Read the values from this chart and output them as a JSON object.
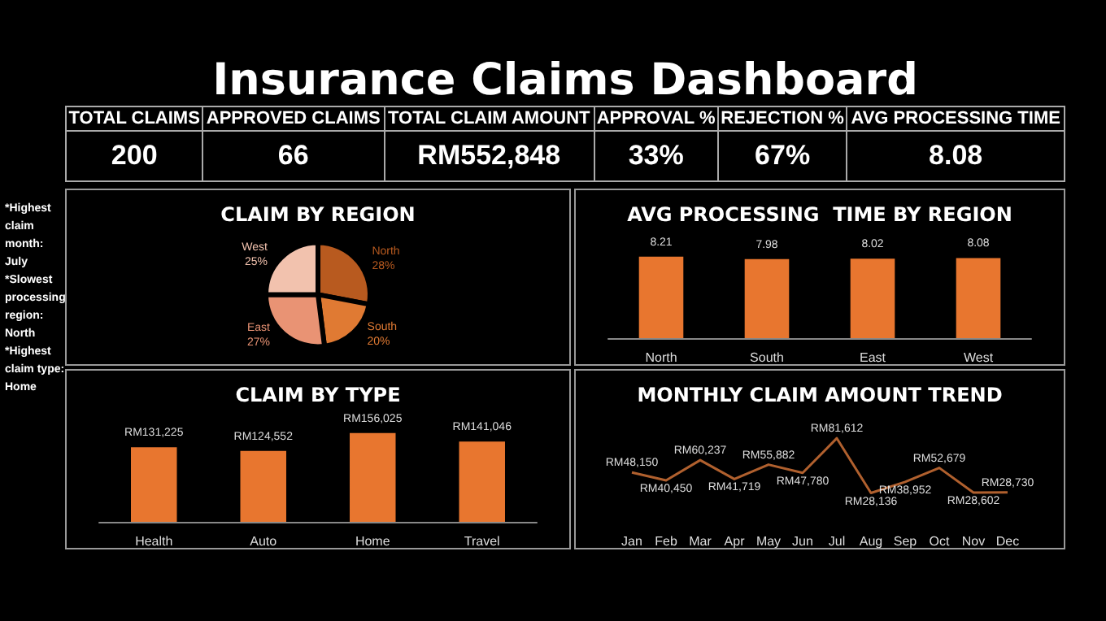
{
  "chart_data": [
    {
      "type": "other",
      "title": "Insurance Claims Dashboard",
      "categories": [
        "TOTAL CLAIMS",
        "APPROVED CLAIMS",
        "TOTAL CLAIM AMOUNT",
        "APPROVAL %",
        "REJECTION %",
        "AVG PROCESSING TIME"
      ],
      "value_labels": [
        "200",
        "66",
        "RM552,848",
        "33%",
        "67%",
        "8.08"
      ],
      "annotations": [
        "*Highest claim month: July",
        "*Slowest processing region: North",
        "*Highest claim type: Home"
      ]
    },
    {
      "type": "pie",
      "title": "CLAIM BY REGION",
      "categories": [
        "North",
        "South",
        "East",
        "West"
      ],
      "values": [
        28,
        20,
        27,
        25
      ],
      "value_labels": [
        "28%",
        "20%",
        "27%",
        "25%"
      ],
      "colors": [
        "#b85a1f",
        "#e07a33",
        "#e99374",
        "#f2c2ae"
      ]
    },
    {
      "type": "bar",
      "title": "AVG PROCESSING  TIME BY REGION",
      "categories": [
        "North",
        "South",
        "East",
        "West"
      ],
      "values": [
        8.21,
        7.98,
        8.02,
        8.08
      ],
      "color": "#e8762f",
      "tick_labels": "x",
      "data_labels": true
    },
    {
      "type": "bar",
      "title": "CLAIM BY TYPE",
      "categories": [
        "Health",
        "Auto",
        "Home",
        "Travel"
      ],
      "values": [
        131225,
        124552,
        156025,
        141046
      ],
      "value_labels": [
        "RM131,225",
        "RM124,552",
        "RM156,025",
        "RM141,046"
      ],
      "color": "#e8762f",
      "tick_labels": "x"
    },
    {
      "type": "line",
      "title": "MONTHLY CLAIM AMOUNT TREND",
      "categories": [
        "Jan",
        "Feb",
        "Mar",
        "Apr",
        "May",
        "Jun",
        "Jul",
        "Aug",
        "Sep",
        "Oct",
        "Nov",
        "Dec"
      ],
      "values": [
        48150,
        40450,
        60237,
        41719,
        55882,
        47780,
        81612,
        28136,
        38952,
        52679,
        28602,
        28730
      ],
      "value_labels": [
        "RM48,150",
        "RM40,450",
        "RM60,237",
        "RM41,719",
        "RM55,882",
        "RM47,780",
        "RM81,612",
        "RM28,136",
        "RM38,952",
        "RM52,679",
        "RM28,602",
        "RM28,730"
      ],
      "color": "#b0602e",
      "tick_labels": "x",
      "marker": "none"
    }
  ]
}
